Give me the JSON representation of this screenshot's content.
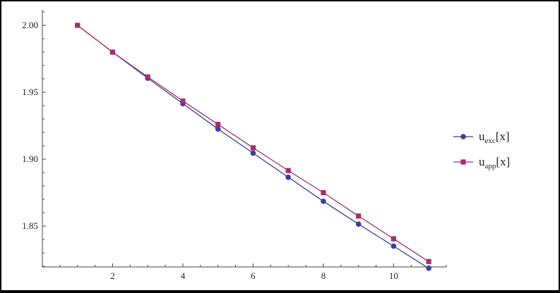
{
  "chart_data": {
    "type": "line",
    "title": "",
    "xlabel": "",
    "ylabel": "",
    "xlim": [
      0,
      11.5
    ],
    "ylim": [
      1.82,
      2.01
    ],
    "x_ticks": [
      2,
      4,
      6,
      8,
      10
    ],
    "y_ticks": [
      1.85,
      1.9,
      1.95,
      2.0
    ],
    "x_tick_labels": [
      "2",
      "4",
      "6",
      "8",
      "10"
    ],
    "y_tick_labels": [
      "1.85",
      "1.90",
      "1.95",
      "2.00"
    ],
    "grid": false,
    "legend_position": "right",
    "series": [
      {
        "name": "u",
        "subscript": "exc",
        "suffix": "[x]",
        "marker": "circle",
        "color": "#3a3f9a",
        "x": [
          1,
          2,
          3,
          4,
          5,
          6,
          7,
          8,
          9,
          10,
          11
        ],
        "values": [
          2.0,
          1.98,
          1.9605,
          1.9415,
          1.9225,
          1.9045,
          1.8865,
          1.8685,
          1.8515,
          1.835,
          1.8185
        ]
      },
      {
        "name": "u",
        "subscript": "app",
        "suffix": "[x]",
        "marker": "square",
        "color": "#a0306e",
        "x": [
          1,
          2,
          3,
          4,
          5,
          6,
          7,
          8,
          9,
          10,
          11
        ],
        "values": [
          2.0,
          1.98,
          1.9615,
          1.9435,
          1.926,
          1.9085,
          1.8915,
          1.875,
          1.8575,
          1.8405,
          1.8235
        ]
      }
    ]
  }
}
